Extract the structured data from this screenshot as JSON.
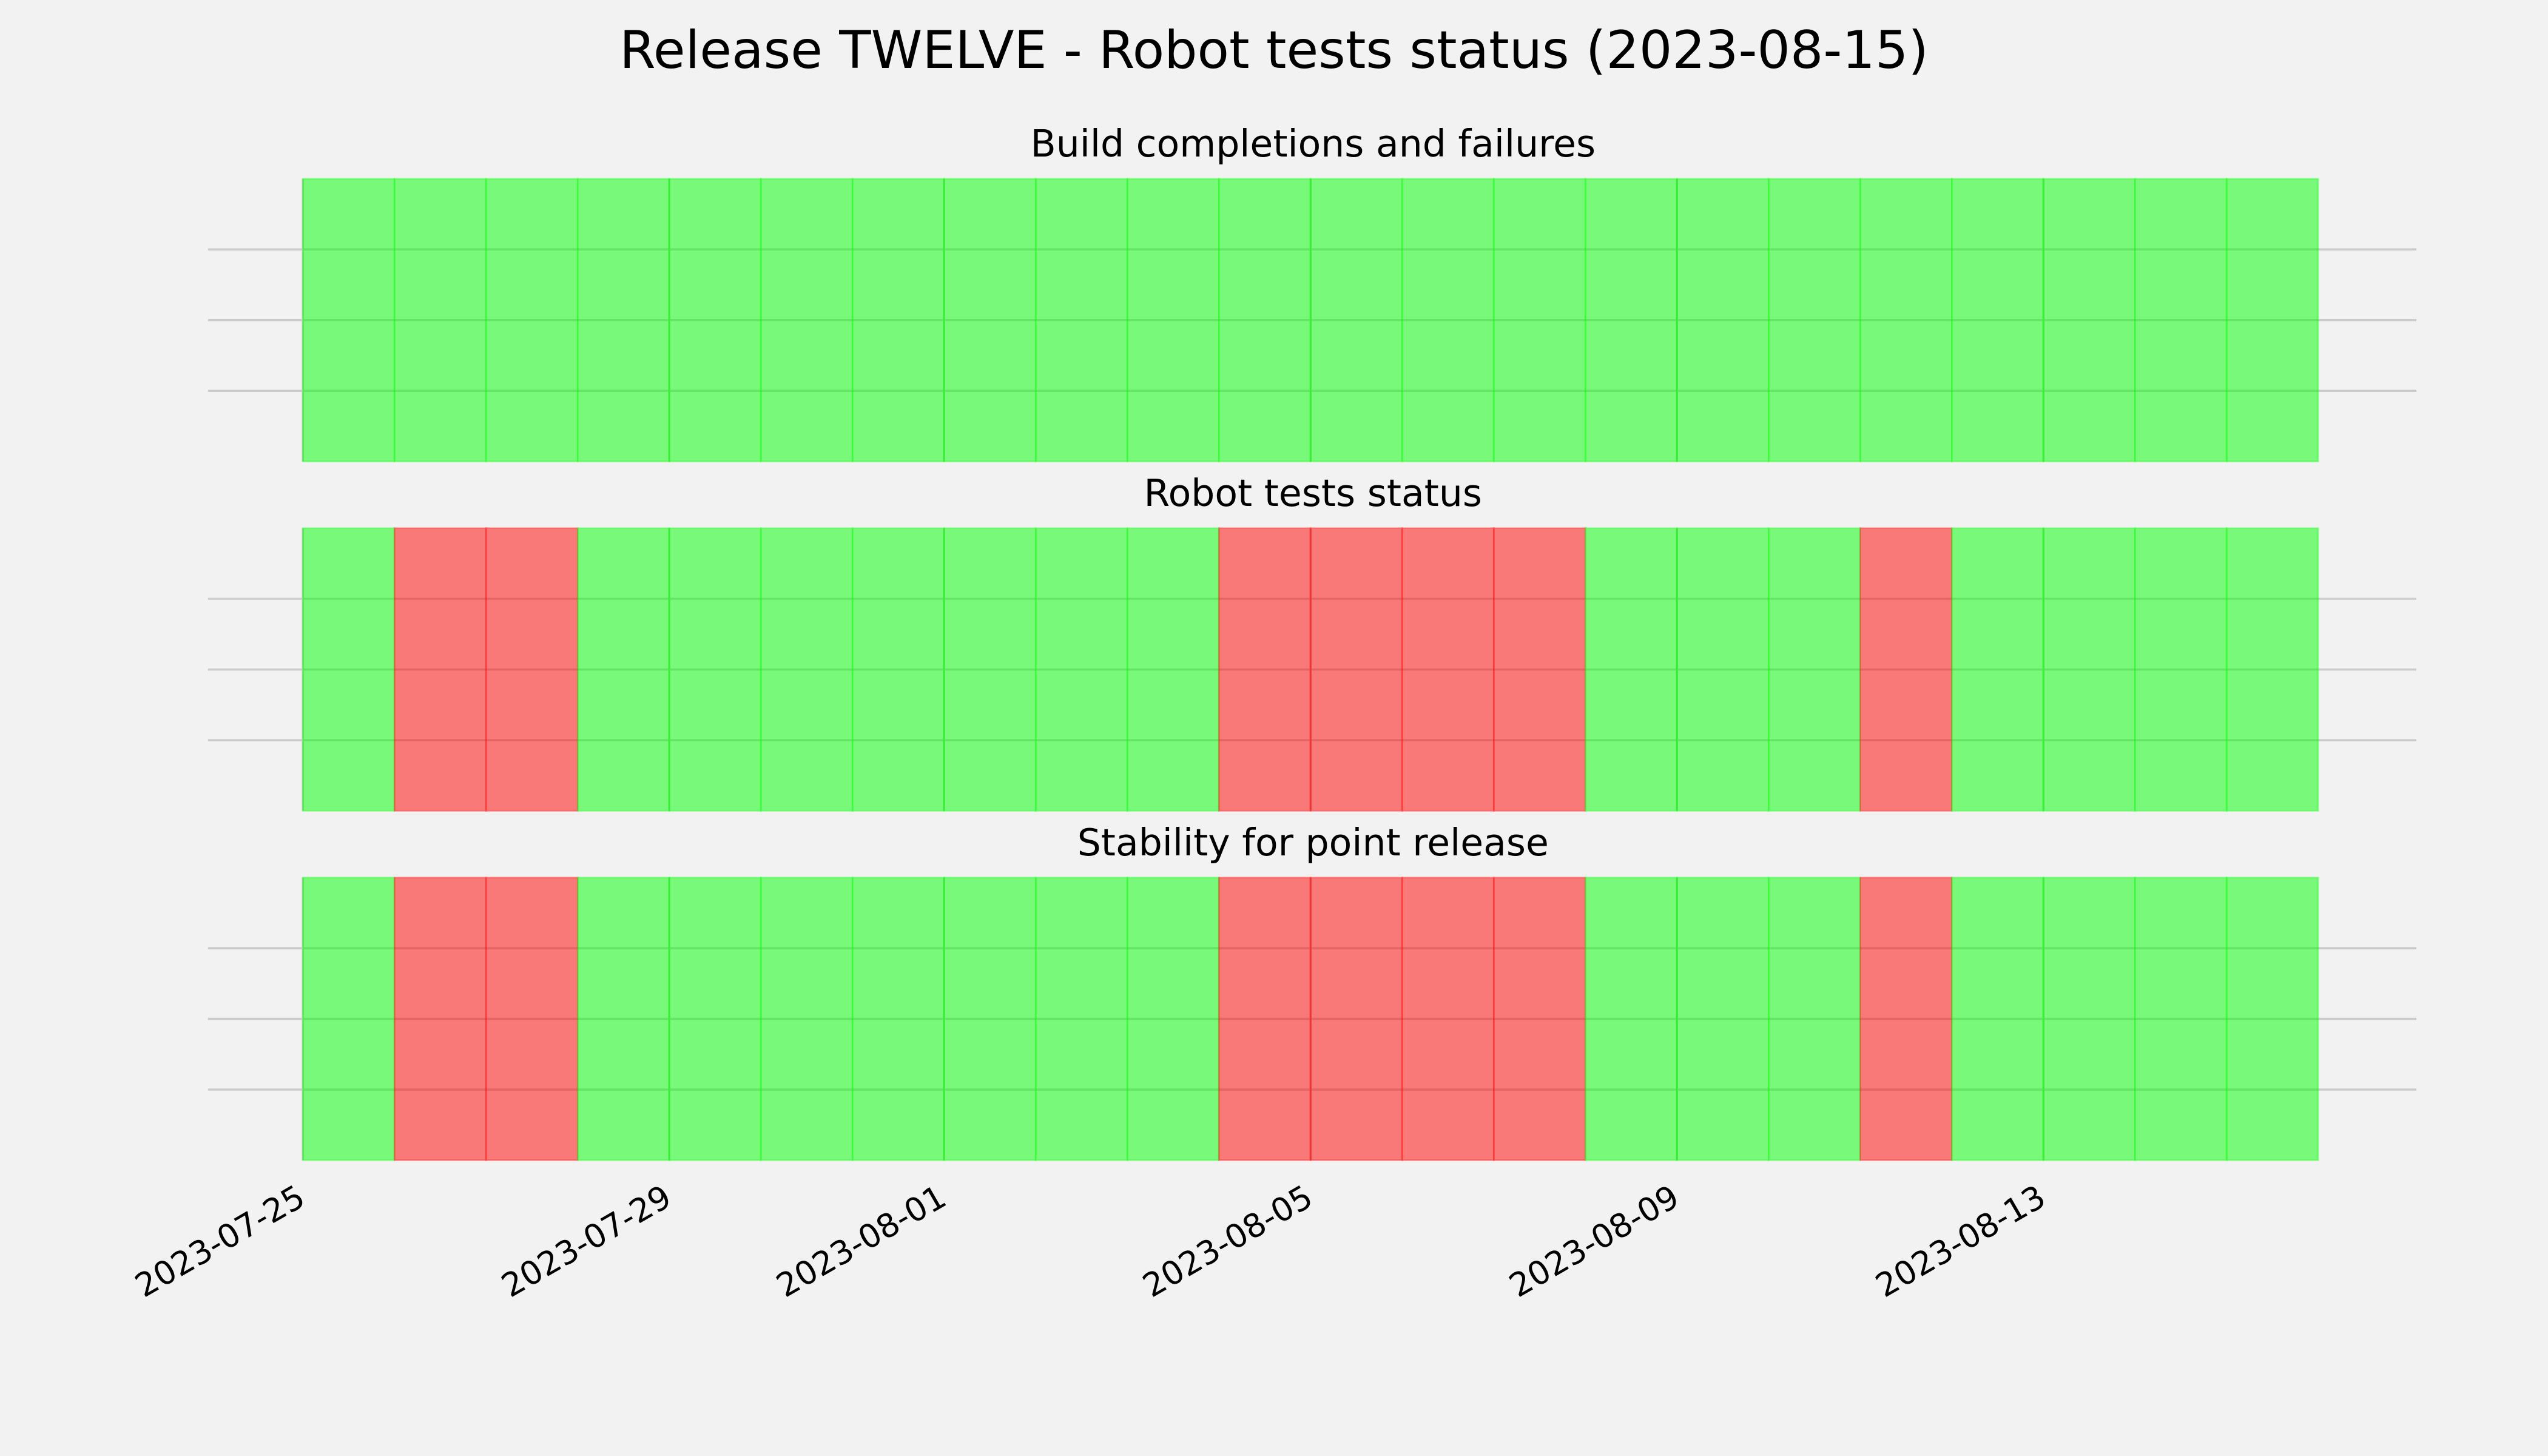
{
  "title": "Release TWELVE - Robot tests status (2023-08-15)",
  "chart_data": [
    {
      "type": "bar",
      "title": "Build completions and failures",
      "x": [
        "2023-07-25",
        "2023-07-26",
        "2023-07-27",
        "2023-07-28",
        "2023-07-29",
        "2023-07-30",
        "2023-07-31",
        "2023-08-01",
        "2023-08-02",
        "2023-08-03",
        "2023-08-04",
        "2023-08-05",
        "2023-08-06",
        "2023-08-07",
        "2023-08-08",
        "2023-08-09",
        "2023-08-10",
        "2023-08-11",
        "2023-08-12",
        "2023-08-13",
        "2023-08-14",
        "2023-08-15"
      ],
      "values": [
        1,
        1,
        1,
        1,
        1,
        1,
        1,
        1,
        1,
        1,
        1,
        1,
        1,
        1,
        1,
        1,
        1,
        1,
        1,
        1,
        1,
        1
      ],
      "colors": [
        "#00ff00",
        "#00ff00",
        "#00ff00",
        "#00ff00",
        "#00ff00",
        "#00ff00",
        "#00ff00",
        "#00ff00",
        "#00ff00",
        "#00ff00",
        "#00ff00",
        "#00ff00",
        "#00ff00",
        "#00ff00",
        "#00ff00",
        "#00ff00",
        "#00ff00",
        "#00ff00",
        "#00ff00",
        "#00ff00",
        "#00ff00",
        "#00ff00"
      ],
      "xlim": [
        "2023-07-24",
        "2023-08-17"
      ],
      "xticks": [
        "2023-07-25",
        "2023-07-29",
        "2023-08-01",
        "2023-08-05",
        "2023-08-09",
        "2023-08-13"
      ],
      "ylim": [
        0,
        1
      ],
      "yticks": [
        0.25,
        0.5,
        0.75
      ],
      "grid": true
    },
    {
      "type": "bar",
      "title": "Robot tests status",
      "x": [
        "2023-07-25",
        "2023-07-26",
        "2023-07-27",
        "2023-07-28",
        "2023-07-29",
        "2023-07-30",
        "2023-07-31",
        "2023-08-01",
        "2023-08-02",
        "2023-08-03",
        "2023-08-04",
        "2023-08-05",
        "2023-08-06",
        "2023-08-07",
        "2023-08-08",
        "2023-08-09",
        "2023-08-10",
        "2023-08-11",
        "2023-08-12",
        "2023-08-13",
        "2023-08-14",
        "2023-08-15"
      ],
      "values": [
        1,
        1,
        1,
        1,
        1,
        1,
        1,
        1,
        1,
        1,
        1,
        1,
        1,
        1,
        1,
        1,
        1,
        1,
        1,
        1,
        1,
        1
      ],
      "colors": [
        "#00ff00",
        "#ff0000",
        "#ff0000",
        "#00ff00",
        "#00ff00",
        "#00ff00",
        "#00ff00",
        "#00ff00",
        "#00ff00",
        "#00ff00",
        "#ff0000",
        "#ff0000",
        "#ff0000",
        "#ff0000",
        "#00ff00",
        "#00ff00",
        "#00ff00",
        "#ff0000",
        "#00ff00",
        "#00ff00",
        "#00ff00",
        "#00ff00"
      ],
      "xlim": [
        "2023-07-24",
        "2023-08-17"
      ],
      "xticks": [
        "2023-07-25",
        "2023-07-29",
        "2023-08-01",
        "2023-08-05",
        "2023-08-09",
        "2023-08-13"
      ],
      "ylim": [
        0,
        1
      ],
      "yticks": [
        0.25,
        0.5,
        0.75
      ],
      "grid": true
    },
    {
      "type": "bar",
      "title": "Stability for point release",
      "x": [
        "2023-07-25",
        "2023-07-26",
        "2023-07-27",
        "2023-07-28",
        "2023-07-29",
        "2023-07-30",
        "2023-07-31",
        "2023-08-01",
        "2023-08-02",
        "2023-08-03",
        "2023-08-04",
        "2023-08-05",
        "2023-08-06",
        "2023-08-07",
        "2023-08-08",
        "2023-08-09",
        "2023-08-10",
        "2023-08-11",
        "2023-08-12",
        "2023-08-13",
        "2023-08-14",
        "2023-08-15"
      ],
      "values": [
        1,
        1,
        1,
        1,
        1,
        1,
        1,
        1,
        1,
        1,
        1,
        1,
        1,
        1,
        1,
        1,
        1,
        1,
        1,
        1,
        1,
        1
      ],
      "colors": [
        "#00ff00",
        "#ff0000",
        "#ff0000",
        "#00ff00",
        "#00ff00",
        "#00ff00",
        "#00ff00",
        "#00ff00",
        "#00ff00",
        "#00ff00",
        "#ff0000",
        "#ff0000",
        "#ff0000",
        "#ff0000",
        "#00ff00",
        "#00ff00",
        "#00ff00",
        "#ff0000",
        "#00ff00",
        "#00ff00",
        "#00ff00",
        "#00ff00"
      ],
      "xlim": [
        "2023-07-24",
        "2023-08-17"
      ],
      "xticks": [
        "2023-07-25",
        "2023-07-29",
        "2023-08-01",
        "2023-08-05",
        "2023-08-09",
        "2023-08-13"
      ],
      "ylim": [
        0,
        1
      ],
      "yticks": [
        0.25,
        0.5,
        0.75
      ],
      "grid": true
    }
  ]
}
